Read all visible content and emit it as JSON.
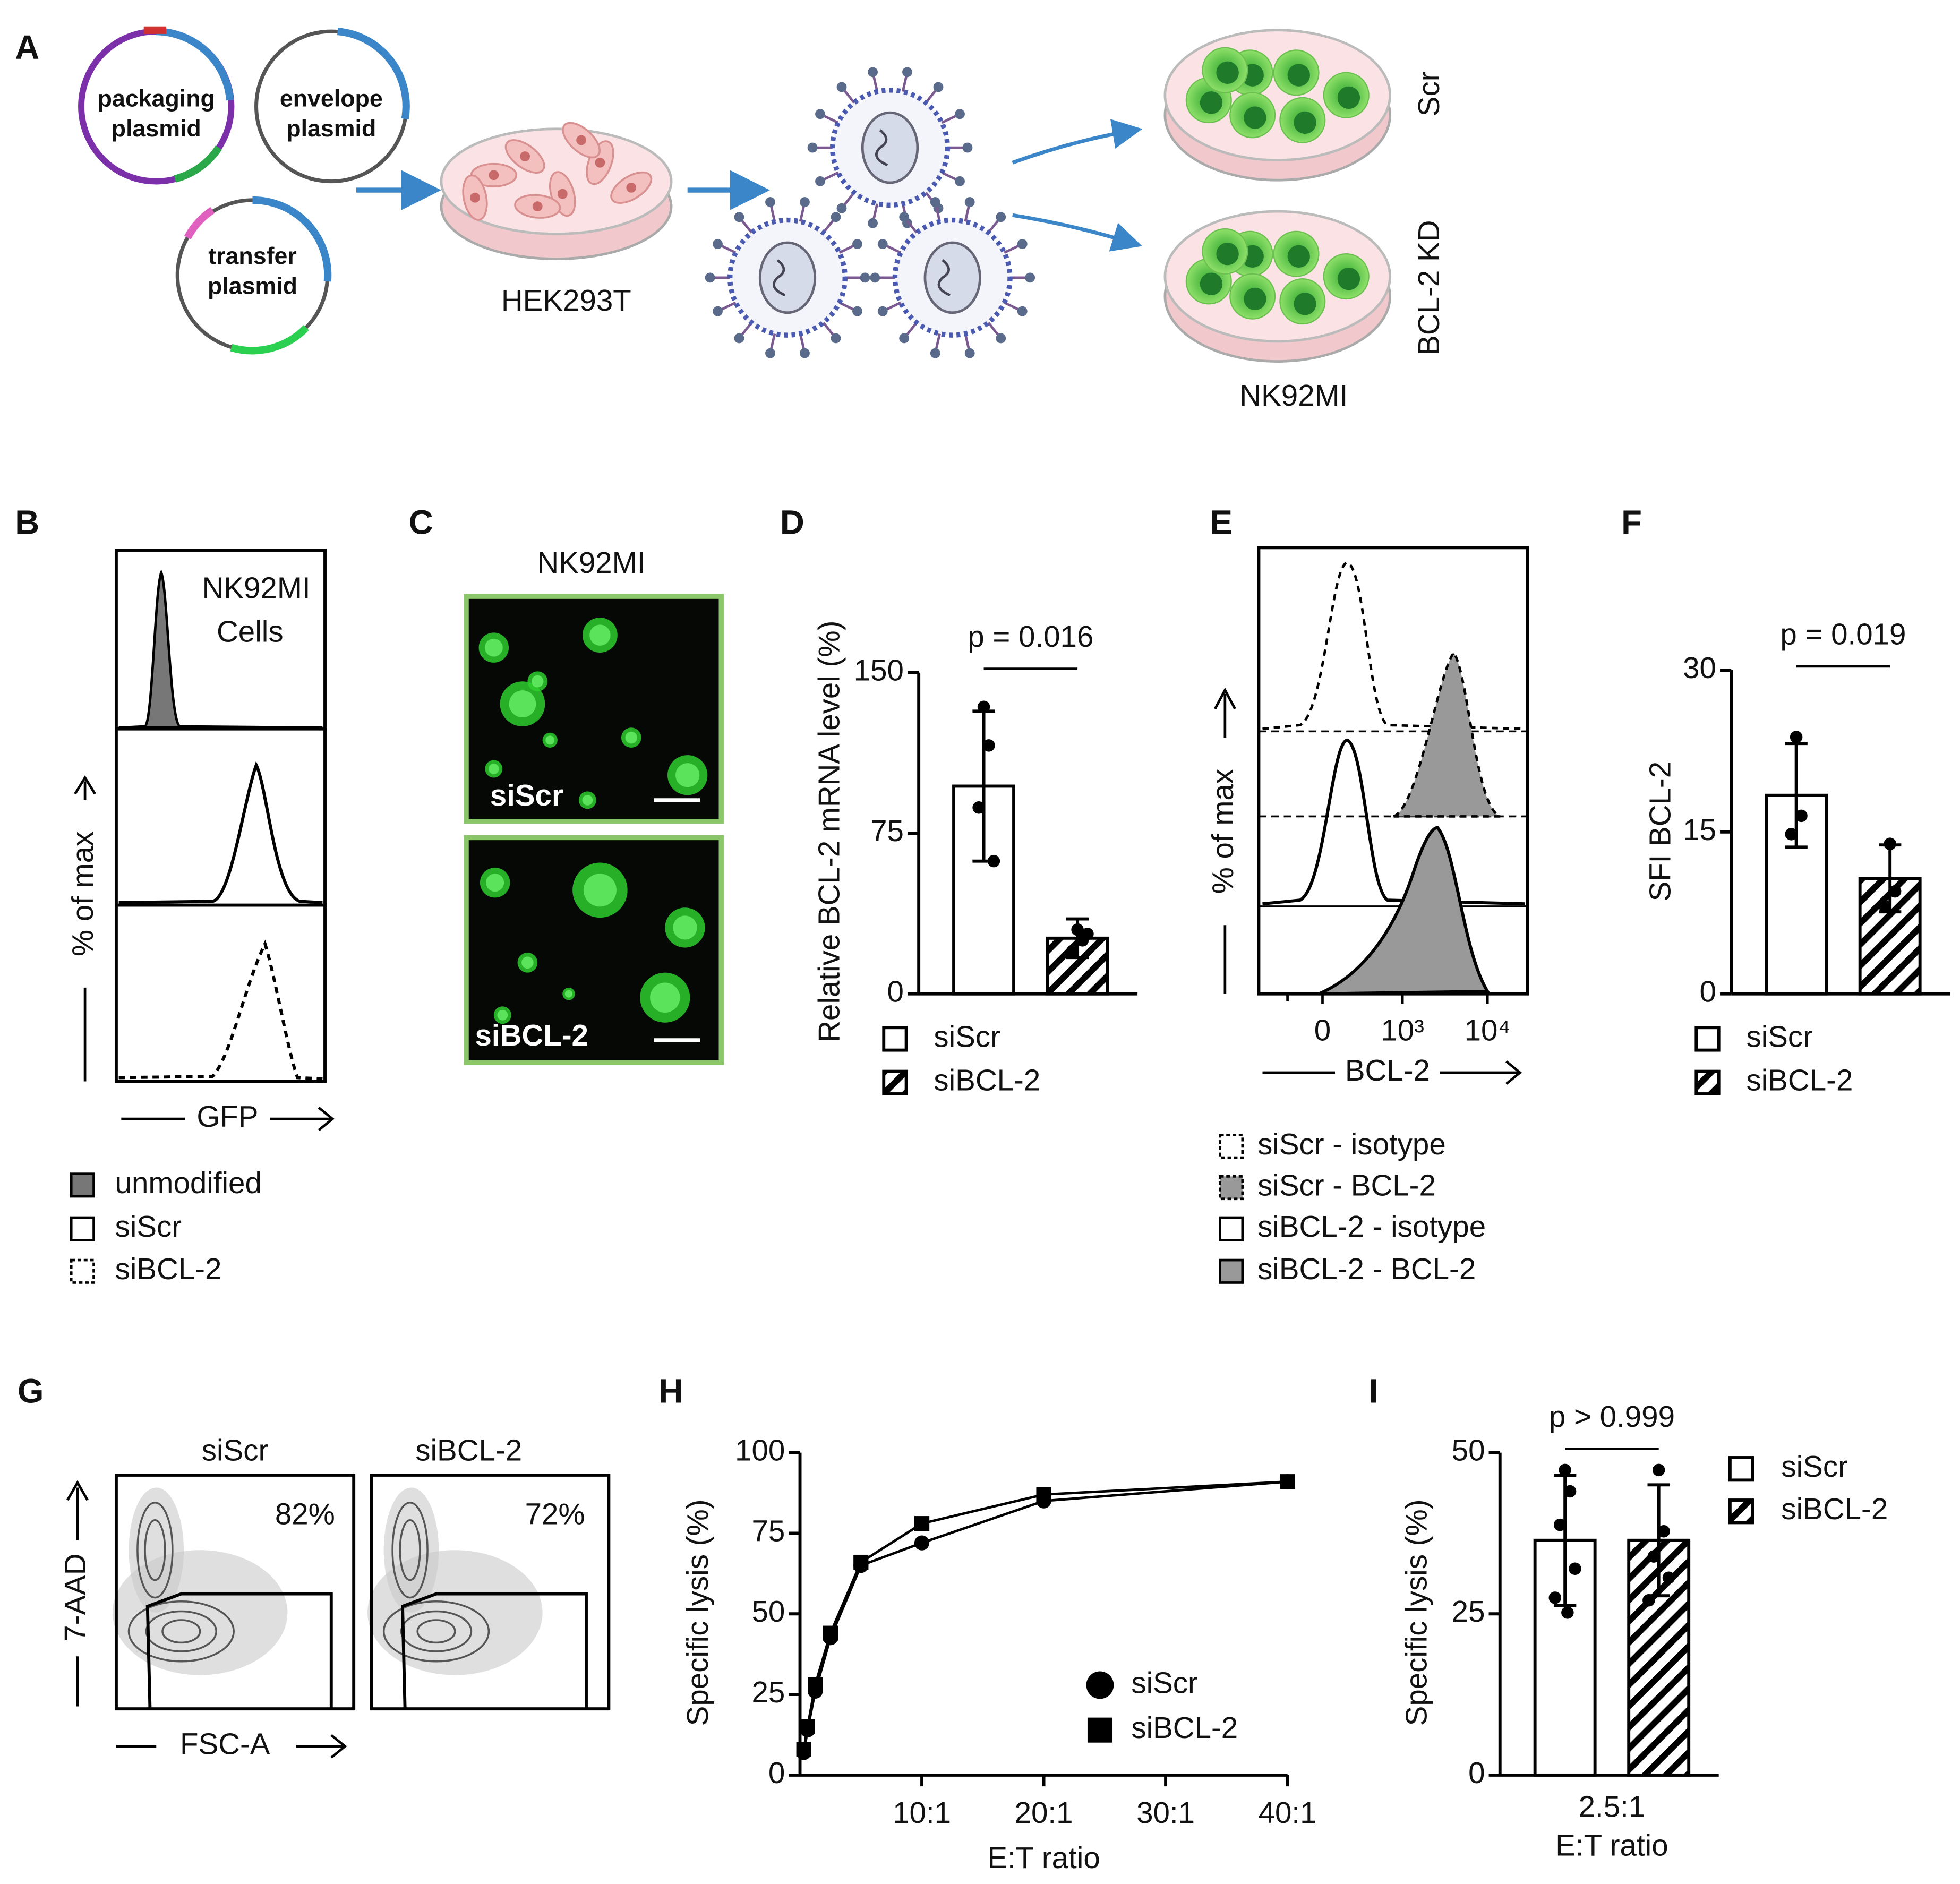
{
  "figure": {
    "panel_labels": [
      "A",
      "B",
      "C",
      "D",
      "E",
      "F",
      "G",
      "H",
      "I"
    ],
    "a": {
      "plasmids": [
        [
          "packaging",
          "plasmid"
        ],
        [
          "envelope",
          "plasmid"
        ],
        [
          "transfer",
          "plasmid"
        ]
      ],
      "producer": "HEK293T",
      "conditions": [
        "Scr",
        "BCL-2 KD"
      ],
      "target": "NK92MI"
    },
    "b": {
      "annotation": [
        "NK92MI",
        "Cells"
      ],
      "x_label": "GFP",
      "y_label": "% of max",
      "legend": [
        "unmodified",
        "siScr",
        "siBCL-2"
      ]
    },
    "c": {
      "title": "NK92MI",
      "images": [
        "siScr",
        "siBCL-2"
      ]
    },
    "e": {
      "x_tick_labels": [
        "0",
        "10³",
        "10⁴"
      ],
      "x_label": "BCL-2",
      "y_label": "% of max",
      "legend": [
        "siScr - isotype",
        "siScr - BCL-2",
        "siBCL-2 - isotype",
        "siBCL-2 - BCL-2"
      ]
    },
    "g": {
      "titles": [
        "siScr",
        "siBCL-2"
      ],
      "gate_percents": [
        "82%",
        "72%"
      ],
      "y_label": "7-AAD",
      "x_label": "FSC-A"
    }
  },
  "chart_data": [
    {
      "type": "bar",
      "y_label": "Relative BCL-2 mRNA level (%)",
      "categories": [
        null
      ],
      "ylim": [
        0,
        150
      ],
      "yticks": [
        0,
        75,
        150
      ],
      "annotation": "p = 0.016",
      "legend": "below",
      "series": [
        {
          "name": "siScr",
          "color": "#ffffff",
          "pattern": "solid",
          "values": [
            97
          ],
          "errors": [
            35
          ],
          "points": [
            134,
            116,
            87,
            62
          ]
        },
        {
          "name": "siBCL-2",
          "color": "#ffffff",
          "pattern": "hatch",
          "values": [
            26
          ],
          "errors": [
            9
          ],
          "points": [
            30,
            25,
            20,
            28
          ]
        }
      ]
    },
    {
      "type": "bar",
      "y_label": "SFI BCL-2",
      "categories": [
        null
      ],
      "ylim": [
        0,
        30
      ],
      "yticks": [
        0,
        15,
        30
      ],
      "annotation": "p = 0.019",
      "legend": "below",
      "series": [
        {
          "name": "siScr",
          "color": "#ffffff",
          "pattern": "solid",
          "values": [
            18.4
          ],
          "errors": [
            4.8
          ],
          "points": [
            23.8,
            16.5,
            14.8
          ]
        },
        {
          "name": "siBCL-2",
          "color": "#ffffff",
          "pattern": "hatch",
          "values": [
            10.7
          ],
          "errors": [
            3.1
          ],
          "points": [
            13.9,
            9.5,
            8.1
          ]
        }
      ]
    },
    {
      "type": "line",
      "x_label": "E:T ratio",
      "y_label": "Specific lysis (%)",
      "x": [
        0.3125,
        0.625,
        1.25,
        2.5,
        5,
        10,
        20,
        40
      ],
      "xlim": [
        0,
        40
      ],
      "xticks": [
        {
          "value": 10,
          "label": "10:1"
        },
        {
          "value": 20,
          "label": "20:1"
        },
        {
          "value": 30,
          "label": "30:1"
        },
        {
          "value": 40,
          "label": "40:1"
        }
      ],
      "ylim": [
        0,
        100
      ],
      "yticks": [
        0,
        25,
        50,
        75,
        100
      ],
      "legend": "lower-right",
      "series": [
        {
          "name": "siScr",
          "color": "#000000",
          "marker": "circle",
          "values": [
            7,
            14,
            26,
            42.6,
            65,
            72,
            85,
            91
          ]
        },
        {
          "name": "siBCL-2",
          "color": "#000000",
          "marker": "square",
          "values": [
            8,
            15,
            28,
            44,
            66,
            78,
            87,
            91
          ]
        }
      ]
    },
    {
      "type": "bar",
      "x_label": "E:T ratio",
      "y_label": "Specific lysis (%)",
      "categories": [
        "2.5:1"
      ],
      "ylim": [
        0,
        50
      ],
      "yticks": [
        0,
        25,
        50
      ],
      "annotation": "p > 0.999",
      "legend": "right",
      "series": [
        {
          "name": "siScr",
          "color": "#ffffff",
          "pattern": "solid",
          "values": [
            36.4
          ],
          "errors": [
            10.1
          ],
          "points": [
            47.3,
            44,
            38.8,
            32,
            27.5,
            25.2
          ]
        },
        {
          "name": "siBCL-2",
          "color": "#ffffff",
          "pattern": "hatch",
          "values": [
            36.4
          ],
          "errors": [
            8.6
          ],
          "points": [
            47.3,
            37.8,
            33.9,
            30.6,
            27.1
          ]
        }
      ]
    }
  ]
}
